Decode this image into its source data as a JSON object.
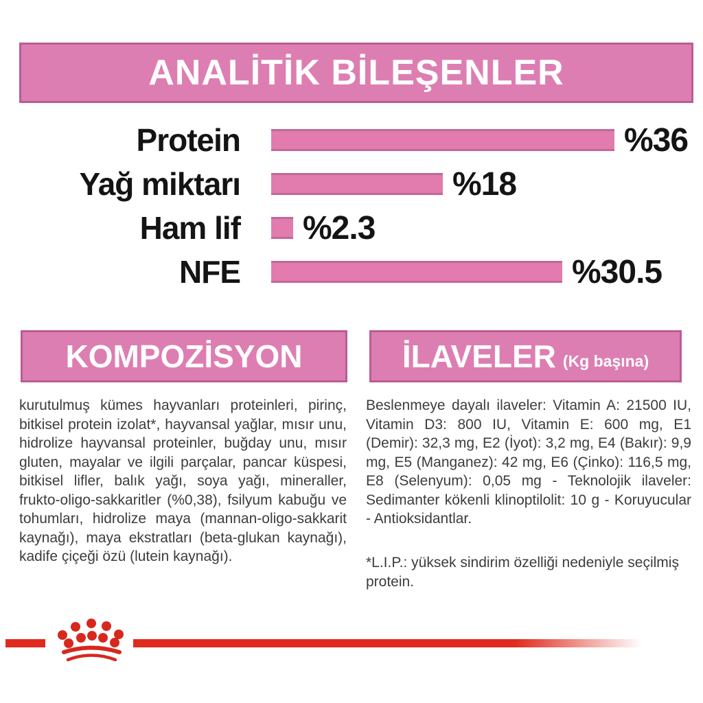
{
  "colors": {
    "accent_pink": "#dd7eb2",
    "accent_pink_border": "#bb5b94",
    "bar_pink": "#e27cae",
    "brand_red": "#d7281d",
    "body_text": "#3c3c3c",
    "chart_text": "#141414"
  },
  "analytics": {
    "title": "ANALİTİK BİLEŞENLER",
    "chart_data": {
      "type": "bar",
      "orientation": "horizontal",
      "categories": [
        "Protein",
        "Yağ miktarı",
        "Ham lif",
        "NFE"
      ],
      "values": [
        36,
        18,
        2.3,
        30.5
      ],
      "value_labels": [
        "%36",
        "%18",
        "%2.3",
        "%30.5"
      ],
      "unit": "percent",
      "xlim": [
        0,
        36
      ],
      "bar_color": "#e27cae",
      "grid": false,
      "legend": false,
      "title": "ANALİTİK BİLEŞENLER",
      "xlabel": "",
      "ylabel": ""
    }
  },
  "composition": {
    "title": "KOMPOZİSYON",
    "body": "kurutulmuş kümes hayvanları proteinleri, pirinç, bitkisel protein izolat*, hayvansal yağlar, mısır unu, hidrolize hayvansal proteinler, buğday unu, mısır gluten, mayalar ve ilgili parçalar, pancar küspesi, bitkisel lifler, balık yağı, soya yağı, mineraller, frukto-oligo-sakkaritler (%0,38), fsilyum kabuğu ve tohumları, hidrolize maya (mannan-oligo-sakkarit kaynağı), maya ekstratları (beta-glukan kaynağı), kadife çiçeği özü (lutein kaynağı)."
  },
  "additives": {
    "title": "İLAVELER",
    "title_suffix": "(Kg başına)",
    "body": "Beslenmeye dayalı ilaveler: Vitamin A: 21500 IU, Vitamin D3: 800 IU, Vitamin E: 600 mg, E1 (Demir): 32,3 mg, E2 (İyot): 3,2 mg, E4 (Bakır): 9,9 mg, E5 (Manganez): 42 mg, E6 (Çinko): 116,5 mg, E8 (Selenyum): 0,05 mg - Teknolojik ilaveler: Sedimanter kökenli klinoptilolit: 10 g - Koruyucular - Antioksidantlar.",
    "footnote": "*L.I.P.: yüksek sindirim özelliği nedeniyle seçilmiş protein."
  },
  "footer": {
    "brand_logo": "royal-canin-crown"
  }
}
